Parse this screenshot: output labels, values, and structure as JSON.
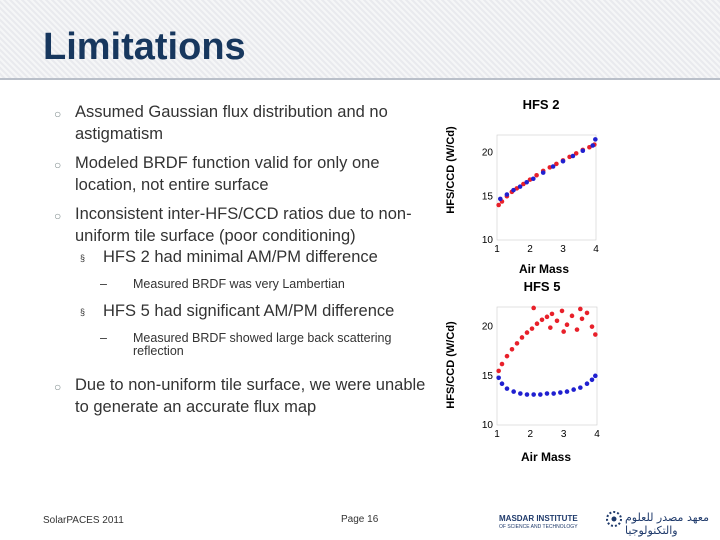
{
  "slide": {
    "title": "Limitations",
    "bullets": [
      "Assumed Gaussian flux distribution and no astigmatism",
      "Modeled BRDF function valid for only one location, not entire surface",
      "Inconsistent inter-HFS/CCD ratios due to non-uniform tile surface (poor conditioning)",
      "Due to non-uniform tile surface, we were unable to generate an accurate flux map"
    ],
    "sub_bullets": [
      {
        "text": "HFS 2 had minimal AM/PM difference",
        "detail": "Measured BRDF was very Lambertian"
      },
      {
        "text": "HFS 5 had significant AM/PM difference",
        "detail": "Measured BRDF showed large back scattering reflection"
      }
    ],
    "sub_mark": "§",
    "dash_mark": "–"
  },
  "footer": {
    "left": "SolarPACES 2011",
    "page": "Page 16",
    "logo_text_1": "MASDAR INSTITUTE",
    "logo_text_2": "OF SCIENCE AND TECHNOLOGY",
    "logo_arabic": "معهد مصدر للعلوم والتكنولوجيا"
  },
  "colors": {
    "title": "#17375e",
    "am_series": "#e8202a",
    "pm_series": "#2020d0"
  },
  "chart_data": [
    {
      "type": "scatter",
      "title": "HFS 2",
      "xlabel": "Air Mass",
      "ylabel": "HFS/CCD (W/Cd)",
      "xlim": [
        1,
        4
      ],
      "ylim": [
        10,
        22
      ],
      "xticks": [
        1,
        2,
        3,
        4
      ],
      "yticks": [
        10,
        15,
        20
      ],
      "series": [
        {
          "color": "red",
          "points": [
            [
              1.05,
              14.0
            ],
            [
              1.15,
              14.4
            ],
            [
              1.3,
              15.0
            ],
            [
              1.45,
              15.5
            ],
            [
              1.6,
              15.9
            ],
            [
              1.8,
              16.4
            ],
            [
              2.0,
              16.9
            ],
            [
              2.2,
              17.4
            ],
            [
              2.4,
              17.9
            ],
            [
              2.6,
              18.3
            ],
            [
              2.8,
              18.7
            ],
            [
              3.0,
              19.1
            ],
            [
              3.2,
              19.5
            ],
            [
              3.4,
              19.9
            ],
            [
              3.6,
              20.3
            ],
            [
              3.8,
              20.6
            ],
            [
              3.95,
              20.9
            ]
          ]
        },
        {
          "color": "blue",
          "points": [
            [
              1.1,
              14.7
            ],
            [
              1.3,
              15.2
            ],
            [
              1.5,
              15.7
            ],
            [
              1.7,
              16.1
            ],
            [
              1.9,
              16.6
            ],
            [
              2.1,
              17.0
            ],
            [
              2.4,
              17.7
            ],
            [
              2.7,
              18.4
            ],
            [
              3.0,
              19.0
            ],
            [
              3.3,
              19.6
            ],
            [
              3.6,
              20.2
            ],
            [
              3.9,
              20.8
            ],
            [
              3.98,
              21.5
            ]
          ]
        }
      ]
    },
    {
      "type": "scatter",
      "title": "HFS 5",
      "xlabel": "Air Mass",
      "ylabel": "HFS/CCD (W/Cd)",
      "xlim": [
        1,
        4
      ],
      "ylim": [
        10,
        22
      ],
      "xticks": [
        1,
        2,
        3,
        4
      ],
      "yticks": [
        10,
        15,
        20
      ],
      "series": [
        {
          "color": "red",
          "points": [
            [
              1.05,
              15.5
            ],
            [
              1.15,
              16.2
            ],
            [
              1.3,
              17.0
            ],
            [
              1.45,
              17.7
            ],
            [
              1.6,
              18.3
            ],
            [
              1.75,
              18.9
            ],
            [
              1.9,
              19.4
            ],
            [
              2.05,
              19.8
            ],
            [
              2.2,
              20.3
            ],
            [
              2.35,
              20.7
            ],
            [
              2.5,
              21.0
            ],
            [
              2.65,
              21.3
            ],
            [
              2.8,
              20.6
            ],
            [
              2.95,
              21.6
            ],
            [
              3.1,
              20.2
            ],
            [
              3.25,
              21.1
            ],
            [
              3.4,
              19.7
            ],
            [
              3.55,
              20.8
            ],
            [
              3.7,
              21.4
            ],
            [
              3.85,
              20.0
            ],
            [
              3.95,
              19.2
            ],
            [
              2.1,
              21.9
            ],
            [
              2.6,
              19.9
            ],
            [
              3.0,
              19.5
            ],
            [
              3.5,
              21.8
            ]
          ]
        },
        {
          "color": "blue",
          "points": [
            [
              1.05,
              14.8
            ],
            [
              1.15,
              14.2
            ],
            [
              1.3,
              13.7
            ],
            [
              1.5,
              13.4
            ],
            [
              1.7,
              13.2
            ],
            [
              1.9,
              13.1
            ],
            [
              2.1,
              13.1
            ],
            [
              2.3,
              13.1
            ],
            [
              2.5,
              13.2
            ],
            [
              2.7,
              13.2
            ],
            [
              2.9,
              13.3
            ],
            [
              3.1,
              13.4
            ],
            [
              3.3,
              13.6
            ],
            [
              3.5,
              13.8
            ],
            [
              3.7,
              14.2
            ],
            [
              3.85,
              14.6
            ],
            [
              3.95,
              15.0
            ]
          ]
        }
      ]
    }
  ]
}
